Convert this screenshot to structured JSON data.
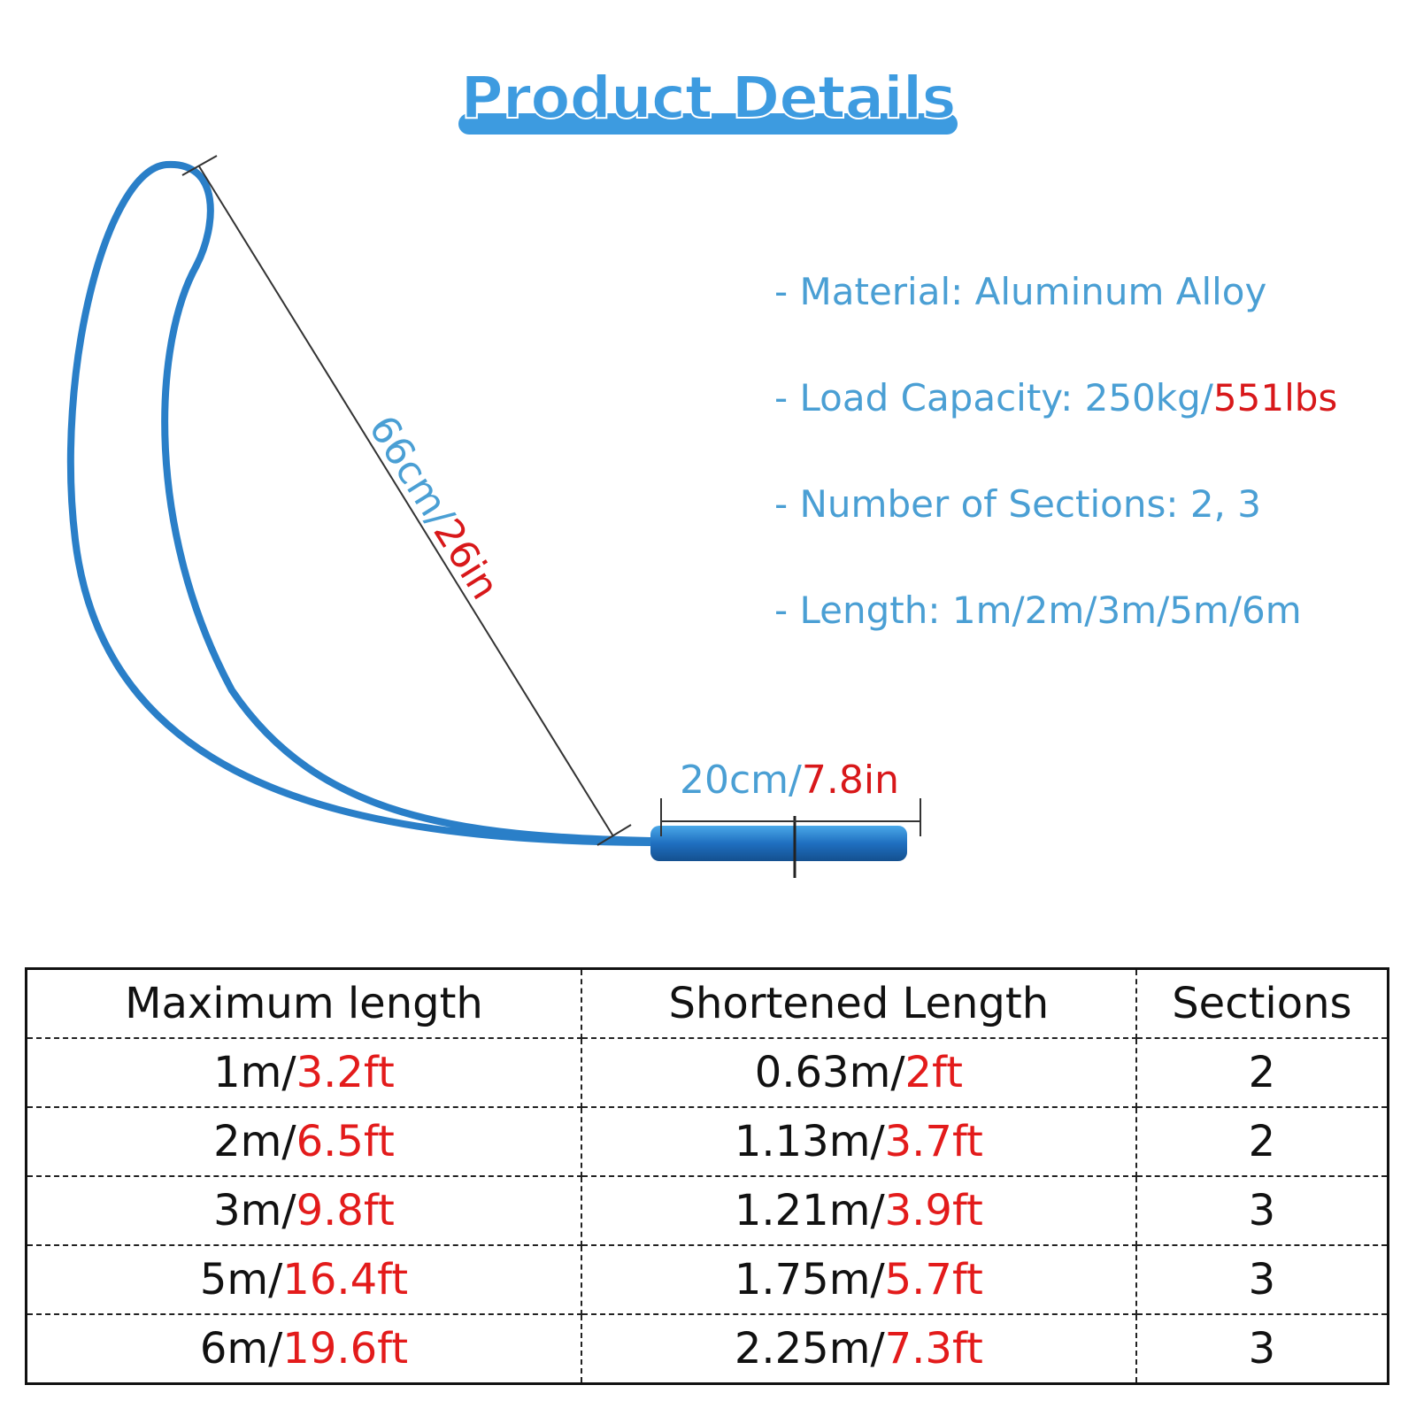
{
  "header": {
    "title": "Product Details"
  },
  "dimensions": {
    "loop": {
      "metric": "66cm/",
      "imperial": "26in"
    },
    "handle": {
      "metric": "20cm/",
      "imperial": "7.8in"
    }
  },
  "specs": [
    {
      "text": "- Material: Aluminum Alloy"
    },
    {
      "text": "- Load Capacity: 250kg/",
      "highlight": "551lbs"
    },
    {
      "text": "- Number of Sections: 2, 3"
    },
    {
      "text": "- Length: 1m/2m/3m/5m/6m"
    }
  ],
  "table": {
    "header": [
      "Maximum length",
      "Shortened Length",
      "Sections"
    ],
    "rows": [
      {
        "max": {
          "metric": "1m/",
          "imperial": "3.2ft"
        },
        "short": {
          "metric": "0.63m/",
          "imperial": "2ft"
        },
        "sections": 2
      },
      {
        "max": {
          "metric": "2m/",
          "imperial": "6.5ft"
        },
        "short": {
          "metric": "1.13m/",
          "imperial": "3.7ft"
        },
        "sections": 2
      },
      {
        "max": {
          "metric": "3m/",
          "imperial": "9.8ft"
        },
        "short": {
          "metric": "1.21m/",
          "imperial": "3.9ft"
        },
        "sections": 3
      },
      {
        "max": {
          "metric": "5m/",
          "imperial": "16.4ft"
        },
        "short": {
          "metric": "1.75m/",
          "imperial": "5.7ft"
        },
        "sections": 3
      },
      {
        "max": {
          "metric": "6m/",
          "imperial": "19.6ft"
        },
        "short": {
          "metric": "2.25m/",
          "imperial": "7.3ft"
        },
        "sections": 3
      }
    ]
  }
}
